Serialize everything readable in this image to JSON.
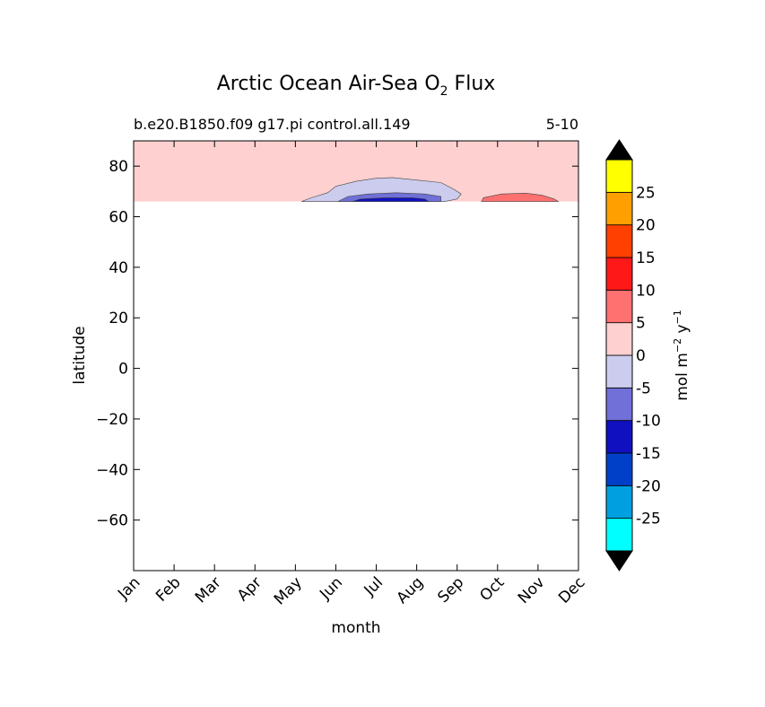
{
  "chart_data": {
    "type": "heatmap",
    "title_prefix": "Arctic Ocean Air-Sea O",
    "title_sub": "2",
    "title_suffix": " Flux",
    "subtitle_left": "b.e20.B1850.f09 g17.pi control.all.149",
    "subtitle_right": "5-10",
    "xlabel": "month",
    "ylabel": "latitude",
    "x_categories": [
      "Jan",
      "Feb",
      "Mar",
      "Apr",
      "May",
      "Jun",
      "Jul",
      "Aug",
      "Sep",
      "Oct",
      "Nov",
      "Dec"
    ],
    "xlim": [
      1,
      12
    ],
    "ylim": [
      -80,
      90
    ],
    "y_ticks": [
      80,
      60,
      40,
      20,
      0,
      -20,
      -40,
      -60
    ],
    "y_tick_labels": [
      "80",
      "60",
      "40",
      "20",
      "0",
      "−20",
      "−40",
      "−60"
    ],
    "data_lat_min": 66,
    "colorbar": {
      "label_main": "mol m",
      "label_sup1": "−2",
      "label_mid": " y",
      "label_sup2": "−1",
      "levels": [
        -30,
        -25,
        -20,
        -15,
        -10,
        -5,
        0,
        5,
        10,
        15,
        20,
        25,
        30
      ],
      "tick_values": [
        -25,
        -20,
        -15,
        -10,
        -5,
        0,
        5,
        10,
        15,
        20,
        25
      ],
      "tick_labels": [
        "-25",
        "-20",
        "-15",
        "-10",
        "-5",
        "0",
        "5",
        "10",
        "15",
        "20",
        "25"
      ],
      "colors": [
        "#00ffff",
        "#00a0e0",
        "#0040c8",
        "#1010c0",
        "#7070d8",
        "#ccccee",
        "#ffd0d0",
        "#ff7070",
        "#ff1818",
        "#ff4000",
        "#ffa000",
        "#ffff00"
      ],
      "extend_low_color": "#000000",
      "extend_high_color": "#000000"
    },
    "background_level": "0 to 5",
    "contours": [
      {
        "level": "-5 to 0",
        "color": "#ccccee",
        "points": [
          [
            5.15,
            66
          ],
          [
            5.4,
            67.5
          ],
          [
            5.8,
            69.5
          ],
          [
            6.0,
            72
          ],
          [
            6.5,
            74
          ],
          [
            7.0,
            75.2
          ],
          [
            7.4,
            75.5
          ],
          [
            8.0,
            74.5
          ],
          [
            8.6,
            73.5
          ],
          [
            8.9,
            71
          ],
          [
            9.1,
            69
          ],
          [
            9.0,
            67
          ],
          [
            8.7,
            66
          ]
        ]
      },
      {
        "level": "-10 to -5",
        "color": "#7070d8",
        "points": [
          [
            6.05,
            66
          ],
          [
            6.3,
            68
          ],
          [
            6.8,
            69
          ],
          [
            7.5,
            69.5
          ],
          [
            8.2,
            69
          ],
          [
            8.6,
            68
          ],
          [
            8.6,
            66
          ]
        ]
      },
      {
        "level": "-15 to -10",
        "color": "#1010c0",
        "points": [
          [
            6.4,
            66
          ],
          [
            6.6,
            67
          ],
          [
            7.2,
            67.5
          ],
          [
            7.9,
            67.5
          ],
          [
            8.2,
            67
          ],
          [
            8.3,
            66
          ]
        ]
      },
      {
        "level": "5 to 10",
        "color": "#ff7070",
        "points": [
          [
            9.6,
            66
          ],
          [
            9.65,
            67.5
          ],
          [
            10.1,
            69
          ],
          [
            10.7,
            69.3
          ],
          [
            11.1,
            68.5
          ],
          [
            11.4,
            67
          ],
          [
            11.5,
            66
          ]
        ]
      }
    ]
  }
}
